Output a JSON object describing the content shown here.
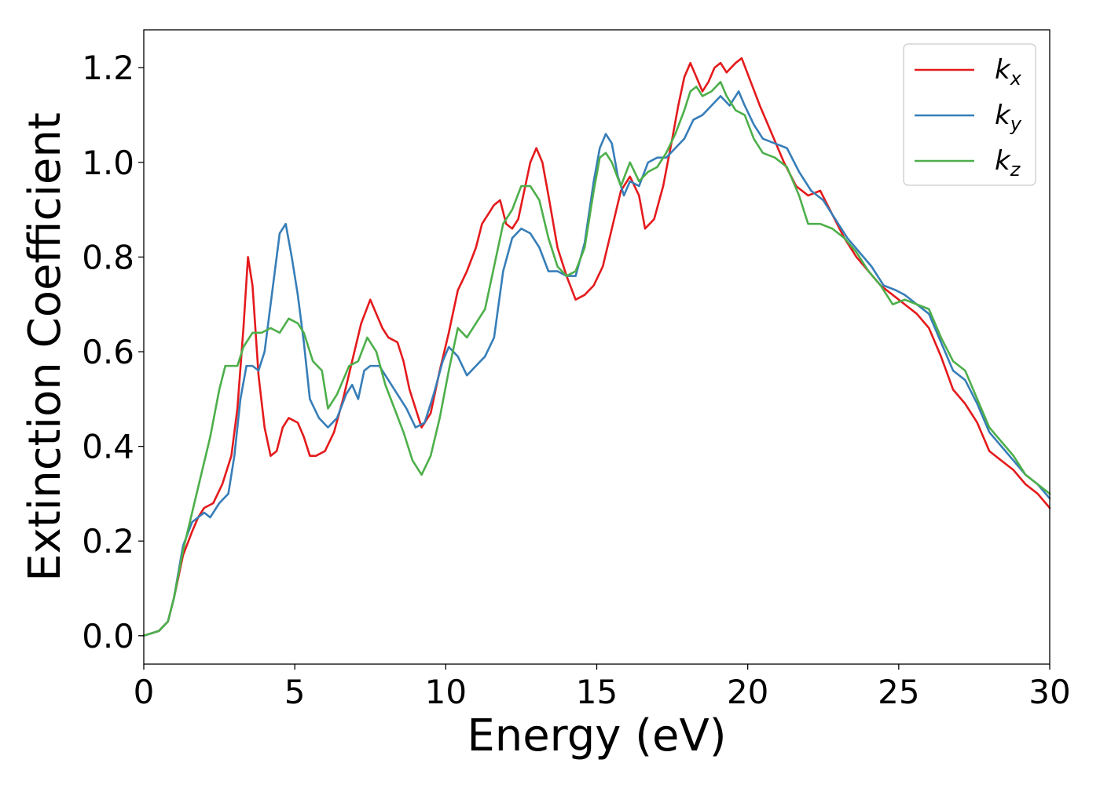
{
  "chart_data": {
    "type": "line",
    "title": "",
    "xlabel": "Energy (eV)",
    "ylabel": "Extinction Coefficient",
    "xlim": [
      0,
      30
    ],
    "ylim": [
      -0.06,
      1.28
    ],
    "xticks": [
      0,
      5,
      10,
      15,
      20,
      25,
      30
    ],
    "xtick_labels": [
      "0",
      "5",
      "10",
      "15",
      "20",
      "25",
      "30"
    ],
    "yticks": [
      0.0,
      0.2,
      0.4,
      0.6,
      0.8,
      1.0,
      1.2
    ],
    "ytick_labels": [
      "0.0",
      "0.2",
      "0.4",
      "0.6",
      "0.8",
      "1.0",
      "1.2"
    ],
    "grid": false,
    "legend_position": "top-right",
    "series": [
      {
        "name": "k",
        "subscript": "x",
        "color": "#e41a1c",
        "points": [
          [
            0,
            0
          ],
          [
            0.5,
            0.01
          ],
          [
            0.8,
            0.03
          ],
          [
            1.0,
            0.08
          ],
          [
            1.3,
            0.17
          ],
          [
            1.6,
            0.22
          ],
          [
            1.8,
            0.25
          ],
          [
            2.0,
            0.27
          ],
          [
            2.3,
            0.28
          ],
          [
            2.6,
            0.32
          ],
          [
            2.9,
            0.38
          ],
          [
            3.1,
            0.48
          ],
          [
            3.3,
            0.65
          ],
          [
            3.45,
            0.8
          ],
          [
            3.6,
            0.74
          ],
          [
            3.8,
            0.55
          ],
          [
            4.0,
            0.44
          ],
          [
            4.2,
            0.38
          ],
          [
            4.4,
            0.39
          ],
          [
            4.6,
            0.44
          ],
          [
            4.8,
            0.46
          ],
          [
            5.1,
            0.45
          ],
          [
            5.3,
            0.42
          ],
          [
            5.5,
            0.38
          ],
          [
            5.7,
            0.38
          ],
          [
            6.0,
            0.39
          ],
          [
            6.3,
            0.43
          ],
          [
            6.6,
            0.5
          ],
          [
            6.9,
            0.58
          ],
          [
            7.2,
            0.66
          ],
          [
            7.5,
            0.71
          ],
          [
            7.7,
            0.68
          ],
          [
            7.9,
            0.65
          ],
          [
            8.1,
            0.63
          ],
          [
            8.4,
            0.62
          ],
          [
            8.6,
            0.58
          ],
          [
            8.8,
            0.52
          ],
          [
            9.0,
            0.48
          ],
          [
            9.2,
            0.44
          ],
          [
            9.5,
            0.47
          ],
          [
            9.8,
            0.56
          ],
          [
            10.1,
            0.64
          ],
          [
            10.4,
            0.73
          ],
          [
            10.7,
            0.77
          ],
          [
            11.0,
            0.82
          ],
          [
            11.2,
            0.87
          ],
          [
            11.4,
            0.89
          ],
          [
            11.6,
            0.91
          ],
          [
            11.8,
            0.92
          ],
          [
            12.0,
            0.87
          ],
          [
            12.2,
            0.86
          ],
          [
            12.4,
            0.88
          ],
          [
            12.6,
            0.94
          ],
          [
            12.8,
            1.0
          ],
          [
            13.0,
            1.03
          ],
          [
            13.2,
            1.0
          ],
          [
            13.4,
            0.93
          ],
          [
            13.7,
            0.82
          ],
          [
            14.0,
            0.76
          ],
          [
            14.3,
            0.71
          ],
          [
            14.6,
            0.72
          ],
          [
            14.9,
            0.74
          ],
          [
            15.2,
            0.78
          ],
          [
            15.5,
            0.86
          ],
          [
            15.8,
            0.94
          ],
          [
            16.1,
            0.97
          ],
          [
            16.4,
            0.93
          ],
          [
            16.6,
            0.86
          ],
          [
            16.9,
            0.88
          ],
          [
            17.2,
            0.95
          ],
          [
            17.5,
            1.05
          ],
          [
            17.7,
            1.12
          ],
          [
            17.9,
            1.18
          ],
          [
            18.1,
            1.21
          ],
          [
            18.3,
            1.18
          ],
          [
            18.5,
            1.15
          ],
          [
            18.7,
            1.17
          ],
          [
            18.9,
            1.2
          ],
          [
            19.1,
            1.21
          ],
          [
            19.3,
            1.19
          ],
          [
            19.6,
            1.21
          ],
          [
            19.8,
            1.22
          ],
          [
            20.1,
            1.17
          ],
          [
            20.4,
            1.12
          ],
          [
            20.8,
            1.06
          ],
          [
            21.2,
            1.0
          ],
          [
            21.6,
            0.95
          ],
          [
            22.0,
            0.93
          ],
          [
            22.4,
            0.94
          ],
          [
            22.8,
            0.89
          ],
          [
            23.2,
            0.84
          ],
          [
            23.6,
            0.8
          ],
          [
            24.0,
            0.77
          ],
          [
            24.4,
            0.74
          ],
          [
            24.8,
            0.72
          ],
          [
            25.2,
            0.7
          ],
          [
            25.6,
            0.68
          ],
          [
            26.0,
            0.65
          ],
          [
            26.4,
            0.59
          ],
          [
            26.8,
            0.52
          ],
          [
            27.2,
            0.49
          ],
          [
            27.6,
            0.45
          ],
          [
            28.0,
            0.39
          ],
          [
            28.4,
            0.37
          ],
          [
            28.8,
            0.35
          ],
          [
            29.2,
            0.32
          ],
          [
            29.6,
            0.3
          ],
          [
            30.0,
            0.27
          ]
        ]
      },
      {
        "name": "k",
        "subscript": "y",
        "color": "#377eb8",
        "points": [
          [
            0,
            0
          ],
          [
            0.5,
            0.01
          ],
          [
            0.8,
            0.03
          ],
          [
            1.0,
            0.08
          ],
          [
            1.3,
            0.19
          ],
          [
            1.6,
            0.24
          ],
          [
            1.8,
            0.25
          ],
          [
            2.0,
            0.26
          ],
          [
            2.2,
            0.25
          ],
          [
            2.5,
            0.28
          ],
          [
            2.8,
            0.3
          ],
          [
            3.0,
            0.38
          ],
          [
            3.2,
            0.5
          ],
          [
            3.4,
            0.57
          ],
          [
            3.6,
            0.57
          ],
          [
            3.8,
            0.56
          ],
          [
            4.0,
            0.6
          ],
          [
            4.3,
            0.75
          ],
          [
            4.5,
            0.85
          ],
          [
            4.7,
            0.87
          ],
          [
            4.9,
            0.8
          ],
          [
            5.1,
            0.72
          ],
          [
            5.3,
            0.62
          ],
          [
            5.5,
            0.5
          ],
          [
            5.8,
            0.46
          ],
          [
            6.1,
            0.44
          ],
          [
            6.4,
            0.46
          ],
          [
            6.7,
            0.51
          ],
          [
            6.9,
            0.53
          ],
          [
            7.1,
            0.5
          ],
          [
            7.3,
            0.56
          ],
          [
            7.5,
            0.57
          ],
          [
            7.8,
            0.57
          ],
          [
            8.1,
            0.54
          ],
          [
            8.4,
            0.51
          ],
          [
            8.7,
            0.48
          ],
          [
            9.0,
            0.44
          ],
          [
            9.3,
            0.45
          ],
          [
            9.6,
            0.51
          ],
          [
            9.9,
            0.58
          ],
          [
            10.1,
            0.61
          ],
          [
            10.4,
            0.59
          ],
          [
            10.7,
            0.55
          ],
          [
            11.0,
            0.57
          ],
          [
            11.3,
            0.59
          ],
          [
            11.6,
            0.63
          ],
          [
            11.9,
            0.77
          ],
          [
            12.2,
            0.84
          ],
          [
            12.5,
            0.86
          ],
          [
            12.8,
            0.85
          ],
          [
            13.1,
            0.82
          ],
          [
            13.4,
            0.77
          ],
          [
            13.7,
            0.77
          ],
          [
            14.0,
            0.76
          ],
          [
            14.3,
            0.76
          ],
          [
            14.6,
            0.83
          ],
          [
            14.9,
            0.96
          ],
          [
            15.1,
            1.03
          ],
          [
            15.3,
            1.06
          ],
          [
            15.5,
            1.04
          ],
          [
            15.7,
            0.97
          ],
          [
            15.9,
            0.93
          ],
          [
            16.1,
            0.96
          ],
          [
            16.4,
            0.95
          ],
          [
            16.7,
            1.0
          ],
          [
            17.0,
            1.01
          ],
          [
            17.3,
            1.01
          ],
          [
            17.6,
            1.03
          ],
          [
            17.9,
            1.05
          ],
          [
            18.2,
            1.09
          ],
          [
            18.5,
            1.1
          ],
          [
            18.8,
            1.12
          ],
          [
            19.1,
            1.14
          ],
          [
            19.4,
            1.12
          ],
          [
            19.7,
            1.15
          ],
          [
            19.9,
            1.12
          ],
          [
            20.2,
            1.08
          ],
          [
            20.5,
            1.05
          ],
          [
            20.9,
            1.04
          ],
          [
            21.3,
            1.03
          ],
          [
            21.7,
            0.98
          ],
          [
            22.1,
            0.94
          ],
          [
            22.5,
            0.92
          ],
          [
            22.9,
            0.88
          ],
          [
            23.3,
            0.84
          ],
          [
            23.7,
            0.81
          ],
          [
            24.1,
            0.78
          ],
          [
            24.5,
            0.74
          ],
          [
            24.9,
            0.73
          ],
          [
            25.2,
            0.72
          ],
          [
            25.6,
            0.7
          ],
          [
            26.0,
            0.68
          ],
          [
            26.4,
            0.62
          ],
          [
            26.8,
            0.56
          ],
          [
            27.2,
            0.54
          ],
          [
            27.6,
            0.49
          ],
          [
            28.0,
            0.43
          ],
          [
            28.4,
            0.4
          ],
          [
            28.8,
            0.37
          ],
          [
            29.2,
            0.34
          ],
          [
            29.6,
            0.32
          ],
          [
            30.0,
            0.29
          ]
        ]
      },
      {
        "name": "k",
        "subscript": "z",
        "color": "#4daf4a",
        "points": [
          [
            0,
            0
          ],
          [
            0.5,
            0.01
          ],
          [
            0.8,
            0.03
          ],
          [
            1.0,
            0.08
          ],
          [
            1.3,
            0.18
          ],
          [
            1.6,
            0.26
          ],
          [
            1.9,
            0.34
          ],
          [
            2.2,
            0.42
          ],
          [
            2.5,
            0.52
          ],
          [
            2.7,
            0.57
          ],
          [
            2.9,
            0.57
          ],
          [
            3.1,
            0.57
          ],
          [
            3.3,
            0.61
          ],
          [
            3.6,
            0.64
          ],
          [
            3.9,
            0.64
          ],
          [
            4.2,
            0.65
          ],
          [
            4.5,
            0.64
          ],
          [
            4.8,
            0.67
          ],
          [
            5.1,
            0.66
          ],
          [
            5.3,
            0.64
          ],
          [
            5.6,
            0.58
          ],
          [
            5.9,
            0.56
          ],
          [
            6.1,
            0.48
          ],
          [
            6.4,
            0.51
          ],
          [
            6.8,
            0.57
          ],
          [
            7.1,
            0.58
          ],
          [
            7.4,
            0.63
          ],
          [
            7.7,
            0.6
          ],
          [
            8.0,
            0.53
          ],
          [
            8.3,
            0.48
          ],
          [
            8.6,
            0.43
          ],
          [
            8.9,
            0.37
          ],
          [
            9.2,
            0.34
          ],
          [
            9.5,
            0.38
          ],
          [
            9.8,
            0.46
          ],
          [
            10.1,
            0.56
          ],
          [
            10.4,
            0.65
          ],
          [
            10.7,
            0.63
          ],
          [
            11.0,
            0.66
          ],
          [
            11.3,
            0.69
          ],
          [
            11.6,
            0.78
          ],
          [
            11.9,
            0.87
          ],
          [
            12.2,
            0.9
          ],
          [
            12.5,
            0.95
          ],
          [
            12.8,
            0.95
          ],
          [
            13.1,
            0.92
          ],
          [
            13.4,
            0.84
          ],
          [
            13.7,
            0.78
          ],
          [
            14.0,
            0.76
          ],
          [
            14.3,
            0.77
          ],
          [
            14.6,
            0.82
          ],
          [
            14.9,
            0.94
          ],
          [
            15.1,
            1.01
          ],
          [
            15.3,
            1.02
          ],
          [
            15.5,
            1.0
          ],
          [
            15.8,
            0.95
          ],
          [
            16.1,
            1.0
          ],
          [
            16.4,
            0.96
          ],
          [
            16.7,
            0.98
          ],
          [
            17.0,
            0.99
          ],
          [
            17.3,
            1.02
          ],
          [
            17.6,
            1.06
          ],
          [
            17.9,
            1.11
          ],
          [
            18.1,
            1.15
          ],
          [
            18.3,
            1.16
          ],
          [
            18.5,
            1.14
          ],
          [
            18.8,
            1.15
          ],
          [
            19.1,
            1.17
          ],
          [
            19.3,
            1.14
          ],
          [
            19.6,
            1.11
          ],
          [
            19.9,
            1.1
          ],
          [
            20.2,
            1.05
          ],
          [
            20.5,
            1.02
          ],
          [
            20.9,
            1.01
          ],
          [
            21.3,
            0.99
          ],
          [
            21.7,
            0.93
          ],
          [
            22.0,
            0.87
          ],
          [
            22.4,
            0.87
          ],
          [
            22.8,
            0.86
          ],
          [
            23.2,
            0.84
          ],
          [
            23.6,
            0.81
          ],
          [
            24.0,
            0.77
          ],
          [
            24.4,
            0.74
          ],
          [
            24.8,
            0.7
          ],
          [
            25.2,
            0.71
          ],
          [
            25.6,
            0.7
          ],
          [
            26.0,
            0.69
          ],
          [
            26.4,
            0.63
          ],
          [
            26.8,
            0.58
          ],
          [
            27.2,
            0.56
          ],
          [
            27.6,
            0.5
          ],
          [
            28.0,
            0.44
          ],
          [
            28.4,
            0.41
          ],
          [
            28.8,
            0.38
          ],
          [
            29.2,
            0.34
          ],
          [
            29.6,
            0.32
          ],
          [
            30.0,
            0.3
          ]
        ]
      }
    ]
  }
}
